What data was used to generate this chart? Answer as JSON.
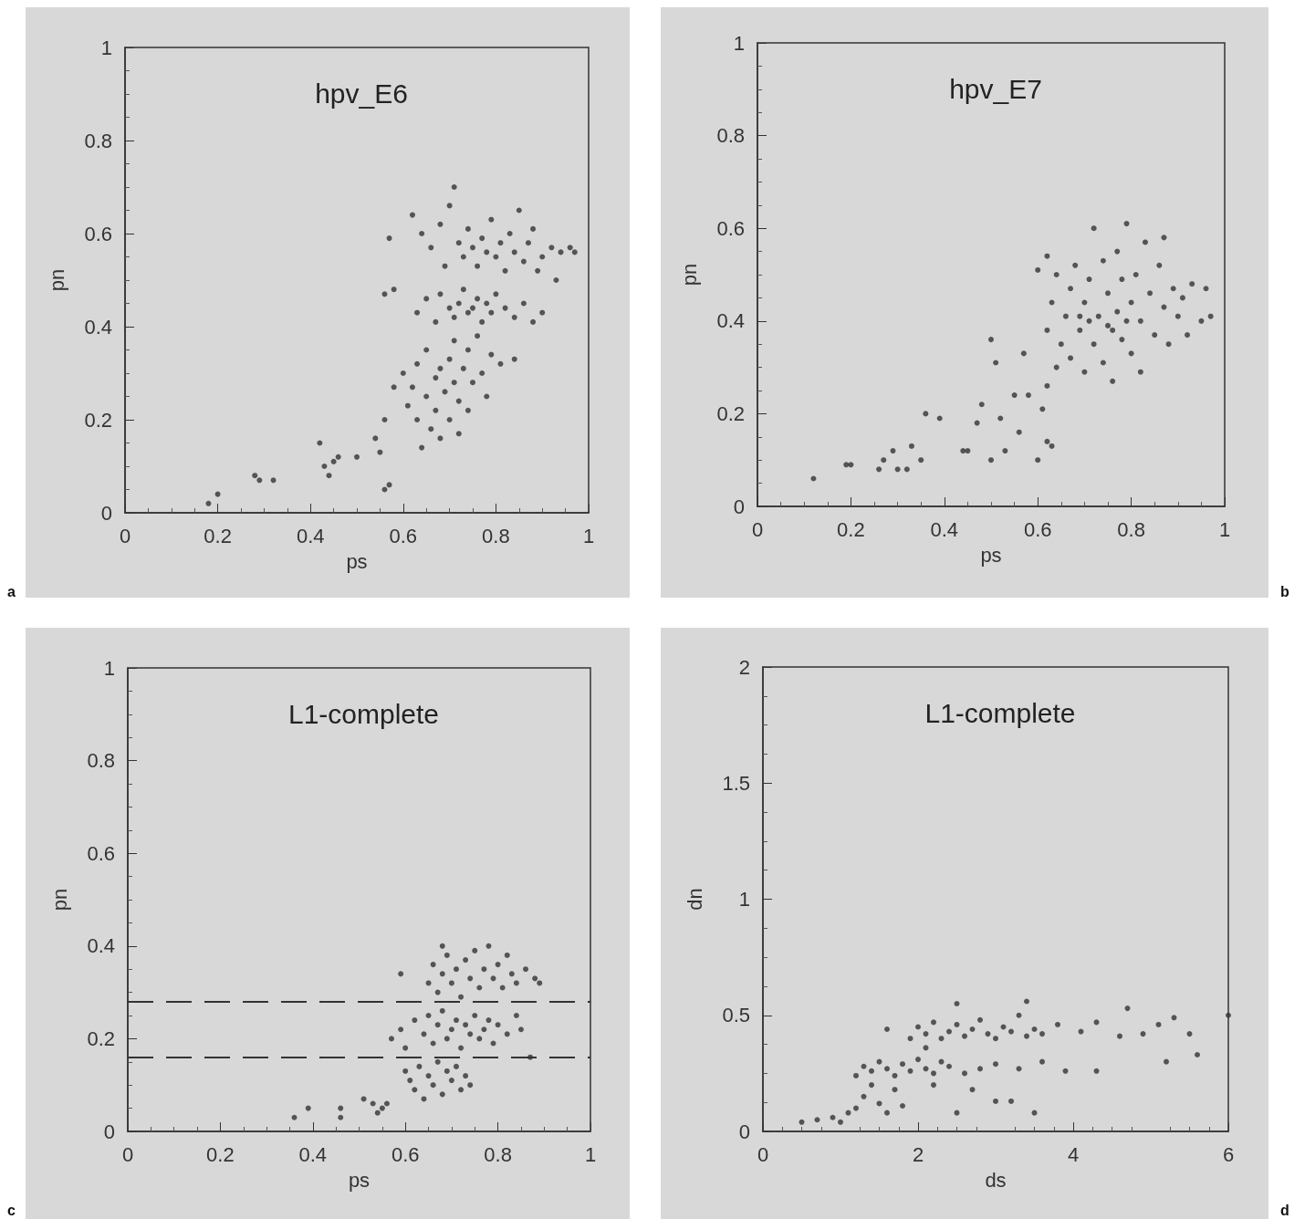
{
  "chart_data": [
    {
      "type": "scatter",
      "title": "hpv_E6",
      "xlabel": "ps",
      "ylabel": "pn",
      "annotations": [
        "a"
      ],
      "xlim": [
        0,
        1
      ],
      "ylim": [
        0,
        1
      ],
      "xticks": [
        0,
        0.2,
        0.4,
        0.6,
        0.8,
        1
      ],
      "yticks": [
        0,
        0.2,
        0.4,
        0.6,
        0.8,
        1
      ],
      "grid": false,
      "marker": "circle",
      "series": [
        {
          "color": "#333333",
          "x": [
            0.18,
            0.2,
            0.28,
            0.29,
            0.32,
            0.42,
            0.43,
            0.44,
            0.45,
            0.46,
            0.5,
            0.54,
            0.56,
            0.57,
            0.55,
            0.56,
            0.56,
            0.57,
            0.58,
            0.58,
            0.6,
            0.61,
            0.62,
            0.63,
            0.63,
            0.64,
            0.65,
            0.65,
            0.66,
            0.67,
            0.67,
            0.68,
            0.68,
            0.69,
            0.7,
            0.7,
            0.71,
            0.71,
            0.72,
            0.72,
            0.73,
            0.74,
            0.74,
            0.75,
            0.76,
            0.77,
            0.78,
            0.79,
            0.81,
            0.84,
            0.63,
            0.65,
            0.67,
            0.68,
            0.7,
            0.71,
            0.72,
            0.73,
            0.74,
            0.75,
            0.76,
            0.77,
            0.78,
            0.79,
            0.8,
            0.82,
            0.84,
            0.86,
            0.88,
            0.9,
            0.62,
            0.64,
            0.66,
            0.68,
            0.69,
            0.7,
            0.71,
            0.72,
            0.73,
            0.74,
            0.75,
            0.76,
            0.77,
            0.78,
            0.79,
            0.8,
            0.81,
            0.82,
            0.83,
            0.84,
            0.86,
            0.87,
            0.88,
            0.9,
            0.92,
            0.94,
            0.96,
            0.97,
            0.93,
            0.85,
            0.89
          ],
          "values": [
            0.02,
            0.04,
            0.08,
            0.07,
            0.07,
            0.15,
            0.1,
            0.08,
            0.11,
            0.12,
            0.12,
            0.16,
            0.05,
            0.06,
            0.13,
            0.2,
            0.47,
            0.59,
            0.48,
            0.27,
            0.3,
            0.23,
            0.27,
            0.32,
            0.2,
            0.14,
            0.25,
            0.35,
            0.18,
            0.29,
            0.22,
            0.31,
            0.16,
            0.26,
            0.33,
            0.2,
            0.28,
            0.37,
            0.17,
            0.24,
            0.31,
            0.35,
            0.22,
            0.28,
            0.38,
            0.3,
            0.25,
            0.34,
            0.32,
            0.33,
            0.43,
            0.46,
            0.41,
            0.47,
            0.44,
            0.42,
            0.45,
            0.48,
            0.43,
            0.44,
            0.46,
            0.41,
            0.45,
            0.43,
            0.47,
            0.44,
            0.42,
            0.45,
            0.41,
            0.43,
            0.64,
            0.6,
            0.57,
            0.62,
            0.53,
            0.66,
            0.7,
            0.58,
            0.55,
            0.61,
            0.57,
            0.53,
            0.59,
            0.56,
            0.63,
            0.55,
            0.58,
            0.52,
            0.6,
            0.56,
            0.54,
            0.58,
            0.61,
            0.55,
            0.57,
            0.56,
            0.57,
            0.56,
            0.5,
            0.65,
            0.52
          ]
        }
      ]
    },
    {
      "type": "scatter",
      "title": "hpv_E7",
      "xlabel": "ps",
      "ylabel": "pn",
      "annotations": [
        "b"
      ],
      "xlim": [
        0,
        1
      ],
      "ylim": [
        0,
        1
      ],
      "xticks": [
        0,
        0.2,
        0.4,
        0.6,
        0.8,
        1
      ],
      "yticks": [
        0,
        0.2,
        0.4,
        0.6,
        0.8,
        1
      ],
      "grid": false,
      "marker": "circle",
      "series": [
        {
          "color": "#333333",
          "x": [
            0.12,
            0.19,
            0.2,
            0.26,
            0.27,
            0.29,
            0.3,
            0.32,
            0.33,
            0.35,
            0.36,
            0.39,
            0.44,
            0.45,
            0.47,
            0.48,
            0.5,
            0.5,
            0.51,
            0.52,
            0.53,
            0.55,
            0.56,
            0.57,
            0.58,
            0.6,
            0.61,
            0.62,
            0.63,
            0.62,
            0.64,
            0.6,
            0.62,
            0.62,
            0.63,
            0.64,
            0.65,
            0.66,
            0.67,
            0.67,
            0.68,
            0.69,
            0.7,
            0.7,
            0.71,
            0.72,
            0.72,
            0.73,
            0.74,
            0.74,
            0.75,
            0.76,
            0.76,
            0.77,
            0.77,
            0.78,
            0.78,
            0.79,
            0.8,
            0.8,
            0.81,
            0.82,
            0.82,
            0.83,
            0.84,
            0.85,
            0.86,
            0.87,
            0.87,
            0.88,
            0.89,
            0.9,
            0.91,
            0.92,
            0.93,
            0.95,
            0.97,
            0.96,
            0.69,
            0.75,
            0.79,
            0.71
          ],
          "values": [
            0.06,
            0.09,
            0.09,
            0.08,
            0.1,
            0.12,
            0.08,
            0.08,
            0.13,
            0.1,
            0.2,
            0.19,
            0.12,
            0.12,
            0.18,
            0.22,
            0.1,
            0.36,
            0.31,
            0.19,
            0.12,
            0.24,
            0.16,
            0.33,
            0.24,
            0.1,
            0.21,
            0.14,
            0.13,
            0.26,
            0.3,
            0.51,
            0.54,
            0.38,
            0.44,
            0.5,
            0.35,
            0.41,
            0.47,
            0.32,
            0.52,
            0.38,
            0.44,
            0.29,
            0.49,
            0.35,
            0.6,
            0.41,
            0.53,
            0.31,
            0.46,
            0.38,
            0.27,
            0.42,
            0.55,
            0.36,
            0.49,
            0.61,
            0.44,
            0.33,
            0.5,
            0.4,
            0.29,
            0.57,
            0.46,
            0.37,
            0.52,
            0.43,
            0.58,
            0.35,
            0.47,
            0.41,
            0.45,
            0.37,
            0.48,
            0.4,
            0.41,
            0.47,
            0.41,
            0.39,
            0.4,
            0.4
          ]
        }
      ]
    },
    {
      "type": "scatter",
      "title": "L1-complete",
      "xlabel": "ps",
      "ylabel": "pn",
      "annotations": [
        "c"
      ],
      "xlim": [
        0,
        1
      ],
      "ylim": [
        0,
        1
      ],
      "xticks": [
        0,
        0.2,
        0.4,
        0.6,
        0.8,
        1
      ],
      "yticks": [
        0,
        0.2,
        0.4,
        0.6,
        0.8,
        1
      ],
      "grid": false,
      "marker": "circle",
      "ref_lines": [
        {
          "axis": "y",
          "value": 0.28,
          "color": "#333333",
          "line_style": "dashed"
        },
        {
          "axis": "y",
          "value": 0.16,
          "color": "#333333",
          "line_style": "dashed"
        }
      ],
      "series": [
        {
          "color": "#333333",
          "x": [
            0.36,
            0.39,
            0.46,
            0.46,
            0.51,
            0.53,
            0.54,
            0.55,
            0.56,
            0.6,
            0.61,
            0.62,
            0.63,
            0.64,
            0.65,
            0.66,
            0.67,
            0.68,
            0.69,
            0.7,
            0.71,
            0.72,
            0.73,
            0.74,
            0.57,
            0.59,
            0.6,
            0.62,
            0.64,
            0.65,
            0.66,
            0.67,
            0.68,
            0.69,
            0.7,
            0.71,
            0.72,
            0.73,
            0.74,
            0.75,
            0.76,
            0.77,
            0.78,
            0.79,
            0.8,
            0.82,
            0.84,
            0.85,
            0.87,
            0.59,
            0.65,
            0.66,
            0.67,
            0.68,
            0.69,
            0.7,
            0.71,
            0.72,
            0.73,
            0.74,
            0.75,
            0.76,
            0.77,
            0.78,
            0.79,
            0.8,
            0.81,
            0.82,
            0.83,
            0.84,
            0.86,
            0.88,
            0.89,
            0.68
          ],
          "values": [
            0.03,
            0.05,
            0.05,
            0.03,
            0.07,
            0.06,
            0.04,
            0.05,
            0.06,
            0.13,
            0.11,
            0.09,
            0.14,
            0.07,
            0.12,
            0.1,
            0.15,
            0.08,
            0.13,
            0.11,
            0.14,
            0.09,
            0.12,
            0.1,
            0.2,
            0.22,
            0.18,
            0.24,
            0.21,
            0.25,
            0.19,
            0.23,
            0.26,
            0.2,
            0.22,
            0.24,
            0.18,
            0.23,
            0.21,
            0.25,
            0.2,
            0.22,
            0.24,
            0.19,
            0.23,
            0.21,
            0.25,
            0.22,
            0.16,
            0.34,
            0.32,
            0.36,
            0.3,
            0.34,
            0.38,
            0.32,
            0.35,
            0.29,
            0.37,
            0.33,
            0.39,
            0.31,
            0.35,
            0.4,
            0.33,
            0.36,
            0.31,
            0.38,
            0.34,
            0.32,
            0.35,
            0.33,
            0.32,
            0.4
          ]
        }
      ]
    },
    {
      "type": "scatter",
      "title": "L1-complete",
      "xlabel": "ds",
      "ylabel": "dn",
      "annotations": [
        "d"
      ],
      "xlim": [
        0,
        6
      ],
      "ylim": [
        0,
        2
      ],
      "xticks": [
        0,
        2,
        4,
        6
      ],
      "yticks": [
        0,
        0.5,
        1,
        1.5,
        2
      ],
      "grid": false,
      "marker": "circle",
      "series": [
        {
          "color": "#333333",
          "x": [
            0.5,
            0.7,
            0.9,
            1.0,
            1.1,
            1.2,
            1.3,
            1.4,
            1.5,
            1.6,
            1.7,
            1.8,
            2.2,
            2.5,
            2.7,
            3.0,
            3.2,
            3.5,
            1.2,
            1.3,
            1.4,
            1.5,
            1.6,
            1.7,
            1.8,
            1.9,
            2.0,
            2.1,
            2.2,
            2.3,
            2.4,
            2.6,
            2.8,
            3.0,
            3.3,
            3.6,
            3.9,
            4.3,
            5.2,
            5.6,
            1.6,
            1.9,
            2.0,
            2.1,
            2.2,
            2.3,
            2.4,
            2.5,
            2.6,
            2.7,
            2.8,
            2.9,
            3.0,
            3.1,
            3.2,
            3.3,
            3.4,
            3.5,
            3.6,
            3.8,
            4.1,
            4.3,
            4.6,
            4.7,
            4.9,
            5.1,
            5.3,
            5.5,
            6.0,
            2.5,
            3.4,
            2.1
          ],
          "values": [
            0.04,
            0.05,
            0.06,
            0.04,
            0.08,
            0.1,
            0.15,
            0.2,
            0.12,
            0.08,
            0.18,
            0.11,
            0.2,
            0.08,
            0.18,
            0.13,
            0.13,
            0.08,
            0.24,
            0.28,
            0.26,
            0.3,
            0.27,
            0.24,
            0.29,
            0.26,
            0.31,
            0.27,
            0.25,
            0.3,
            0.28,
            0.25,
            0.27,
            0.29,
            0.27,
            0.3,
            0.26,
            0.26,
            0.3,
            0.33,
            0.44,
            0.4,
            0.45,
            0.42,
            0.47,
            0.4,
            0.43,
            0.46,
            0.41,
            0.44,
            0.48,
            0.42,
            0.4,
            0.45,
            0.43,
            0.5,
            0.41,
            0.44,
            0.42,
            0.46,
            0.43,
            0.47,
            0.41,
            0.53,
            0.42,
            0.46,
            0.49,
            0.42,
            0.5,
            0.55,
            0.56,
            0.36
          ]
        }
      ]
    }
  ]
}
